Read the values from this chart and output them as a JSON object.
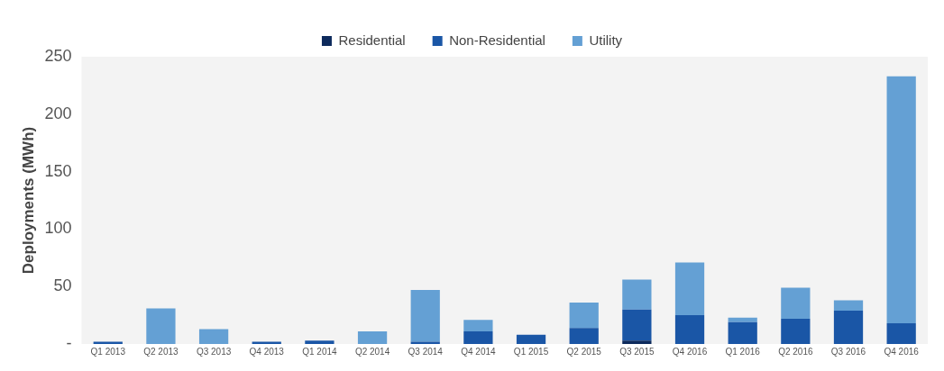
{
  "chart_data": {
    "type": "bar",
    "stacked": true,
    "ylabel": "Deployments (MWh)",
    "categories": [
      "Q1 2013",
      "Q2 2013",
      "Q3 2013",
      "Q4 2013",
      "Q1 2014",
      "Q2 2014",
      "Q3 2014",
      "Q4 2014",
      "Q1 2015",
      "Q2 2015",
      "Q3 2015",
      "Q4 2016",
      "Q1 2016",
      "Q2 2016",
      "Q3 2016",
      "Q4 2016"
    ],
    "series": [
      {
        "name": "Residential",
        "color": "#0d2a5c",
        "values": [
          0,
          0,
          0,
          0,
          0,
          0,
          0,
          0,
          0,
          0,
          3,
          0,
          0,
          0,
          0,
          0
        ]
      },
      {
        "name": "Non-Residential",
        "color": "#1a56a6",
        "values": [
          2,
          0,
          0,
          2,
          3,
          0,
          2,
          11,
          8,
          14,
          27,
          25,
          19,
          22,
          29,
          18
        ]
      },
      {
        "name": "Utility",
        "color": "#64a0d4",
        "values": [
          0,
          31,
          13,
          0,
          0,
          11,
          45,
          10,
          0,
          22,
          26,
          46,
          4,
          27,
          9,
          215
        ]
      }
    ],
    "ylim": [
      0,
      250
    ],
    "yticks": [
      {
        "value": 0,
        "label": "-"
      },
      50,
      100,
      150,
      200,
      250
    ],
    "grid": false,
    "legend": "top"
  }
}
